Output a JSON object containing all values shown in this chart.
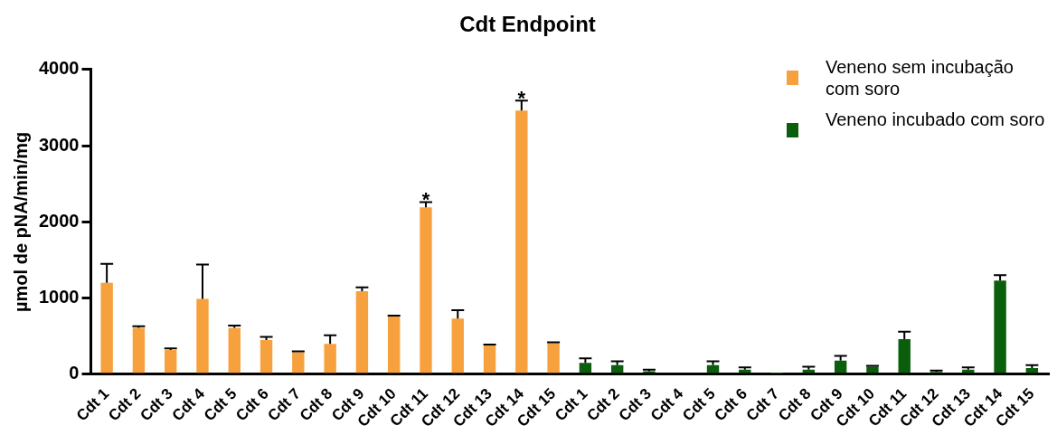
{
  "chart_data": {
    "type": "bar",
    "title": "Cdt Endpoint",
    "ylabel": "µmol de pNA/min/mg",
    "categories": [
      "Cdt 1",
      "Cdt 2",
      "Cdt 3",
      "Cdt 4",
      "Cdt 5",
      "Cdt 6",
      "Cdt 7",
      "Cdt 8",
      "Cdt 9",
      "Cdt 10",
      "Cdt 11",
      "Cdt 12",
      "Cdt 13",
      "Cdt 14",
      "Cdt 15",
      "Cdt 1",
      "Cdt 2",
      "Cdt 3",
      "Cdt 4",
      "Cdt 5",
      "Cdt 6",
      "Cdt 7",
      "Cdt 8",
      "Cdt 9",
      "Cdt 10",
      "Cdt 11",
      "Cdt 12",
      "Cdt 13",
      "Cdt 14",
      "Cdt 15"
    ],
    "series": [
      {
        "name": "Veneno sem incubação com soro",
        "color": "#f7a13e",
        "values": [
          1200,
          610,
          320,
          990,
          610,
          450,
          290,
          400,
          1090,
          760,
          2190,
          730,
          380,
          3460,
          410,
          null,
          null,
          null,
          null,
          null,
          null,
          null,
          null,
          null,
          null,
          null,
          null,
          null,
          null,
          null
        ],
        "errors": [
          250,
          20,
          20,
          450,
          30,
          40,
          10,
          110,
          50,
          10,
          70,
          110,
          10,
          130,
          10,
          null,
          null,
          null,
          null,
          null,
          null,
          null,
          null,
          null,
          null,
          null,
          null,
          null,
          null,
          null
        ]
      },
      {
        "name": "Veneno incubado com soro",
        "color": "#0b5e0b",
        "values": [
          null,
          null,
          null,
          null,
          null,
          null,
          null,
          null,
          null,
          null,
          null,
          null,
          null,
          null,
          null,
          150,
          120,
          40,
          0,
          120,
          60,
          10,
          60,
          180,
          100,
          460,
          30,
          60,
          1230,
          80
        ],
        "errors": [
          null,
          null,
          null,
          null,
          null,
          null,
          null,
          null,
          null,
          null,
          null,
          null,
          null,
          null,
          null,
          60,
          50,
          20,
          null,
          50,
          30,
          null,
          40,
          60,
          10,
          100,
          20,
          30,
          70,
          40
        ]
      }
    ],
    "ylim": [
      0,
      4000
    ],
    "yticks": [
      0,
      1000,
      2000,
      3000,
      4000
    ],
    "grid": false,
    "legend": "top right",
    "annotations": [
      {
        "text": "*",
        "x": "Cdt 11",
        "y": 2260
      },
      {
        "text": "*",
        "x": "Cdt 14",
        "y": 3590
      }
    ]
  }
}
